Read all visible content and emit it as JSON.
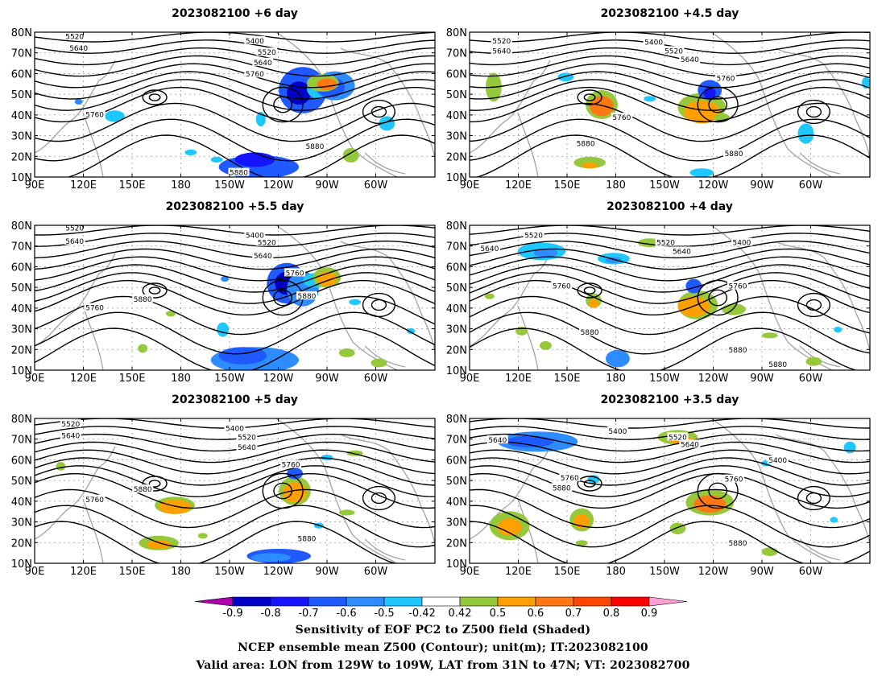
{
  "panels": [
    {
      "title": "2023082100 +6 day",
      "contour_labels": [
        "5520",
        "5640",
        "5400",
        "5520",
        "5640",
        "5760",
        "5760",
        "5880",
        "5880"
      ]
    },
    {
      "title": "2023082100 +4.5 day",
      "contour_labels": [
        "5520",
        "5640",
        "5400",
        "5520",
        "5640",
        "5760",
        "5760",
        "5880",
        "5880"
      ]
    },
    {
      "title": "2023082100 +5.5 day",
      "contour_labels": [
        "5520",
        "5640",
        "5400",
        "5520",
        "5640",
        "5760",
        "5760",
        "5880",
        "5880"
      ]
    },
    {
      "title": "2023082100 +4 day",
      "contour_labels": [
        "5520",
        "5640",
        "5400",
        "5520",
        "5640",
        "5760",
        "5760",
        "5880",
        "5880",
        "5880"
      ]
    },
    {
      "title": "2023082100 +5 day",
      "contour_labels": [
        "5520",
        "5640",
        "5400",
        "5520",
        "5640",
        "5760",
        "5760",
        "5880",
        "5880"
      ]
    },
    {
      "title": "2023082100 +3.5 day",
      "contour_labels": [
        "5640",
        "5400",
        "5520",
        "5640",
        "5400",
        "5760",
        "5760",
        "5880",
        "5880"
      ]
    }
  ],
  "axes": {
    "lat_labels": [
      "80N",
      "70N",
      "60N",
      "50N",
      "40N",
      "30N",
      "20N",
      "10N"
    ],
    "lon_labels": [
      "90E",
      "120E",
      "150E",
      "180",
      "150W",
      "120W",
      "90W",
      "60W"
    ]
  },
  "colorbar": {
    "tick_labels": [
      "-0.9",
      "-0.8",
      "-0.7",
      "-0.6",
      "-0.5",
      "-0.42",
      "0.42",
      "0.5",
      "0.6",
      "0.7",
      "0.8",
      "0.9"
    ],
    "colors": [
      "#b000b0",
      "#0000c8",
      "#1414ff",
      "#1e5aff",
      "#2d8cff",
      "#1ec8ff",
      "#ffffff",
      "#96c83c",
      "#ffa000",
      "#ff7814",
      "#ff4600",
      "#ff0000",
      "#ffa0d2"
    ]
  },
  "captions": [
    "Sensitivity of EOF PC2 to Z500 field (Shaded)",
    "NCEP ensemble mean Z500 (Contour); unit(m); IT:2023082100",
    "Valid area: LON from 129W to 109W, LAT from 31N to 47N; VT: 2023082700"
  ]
}
